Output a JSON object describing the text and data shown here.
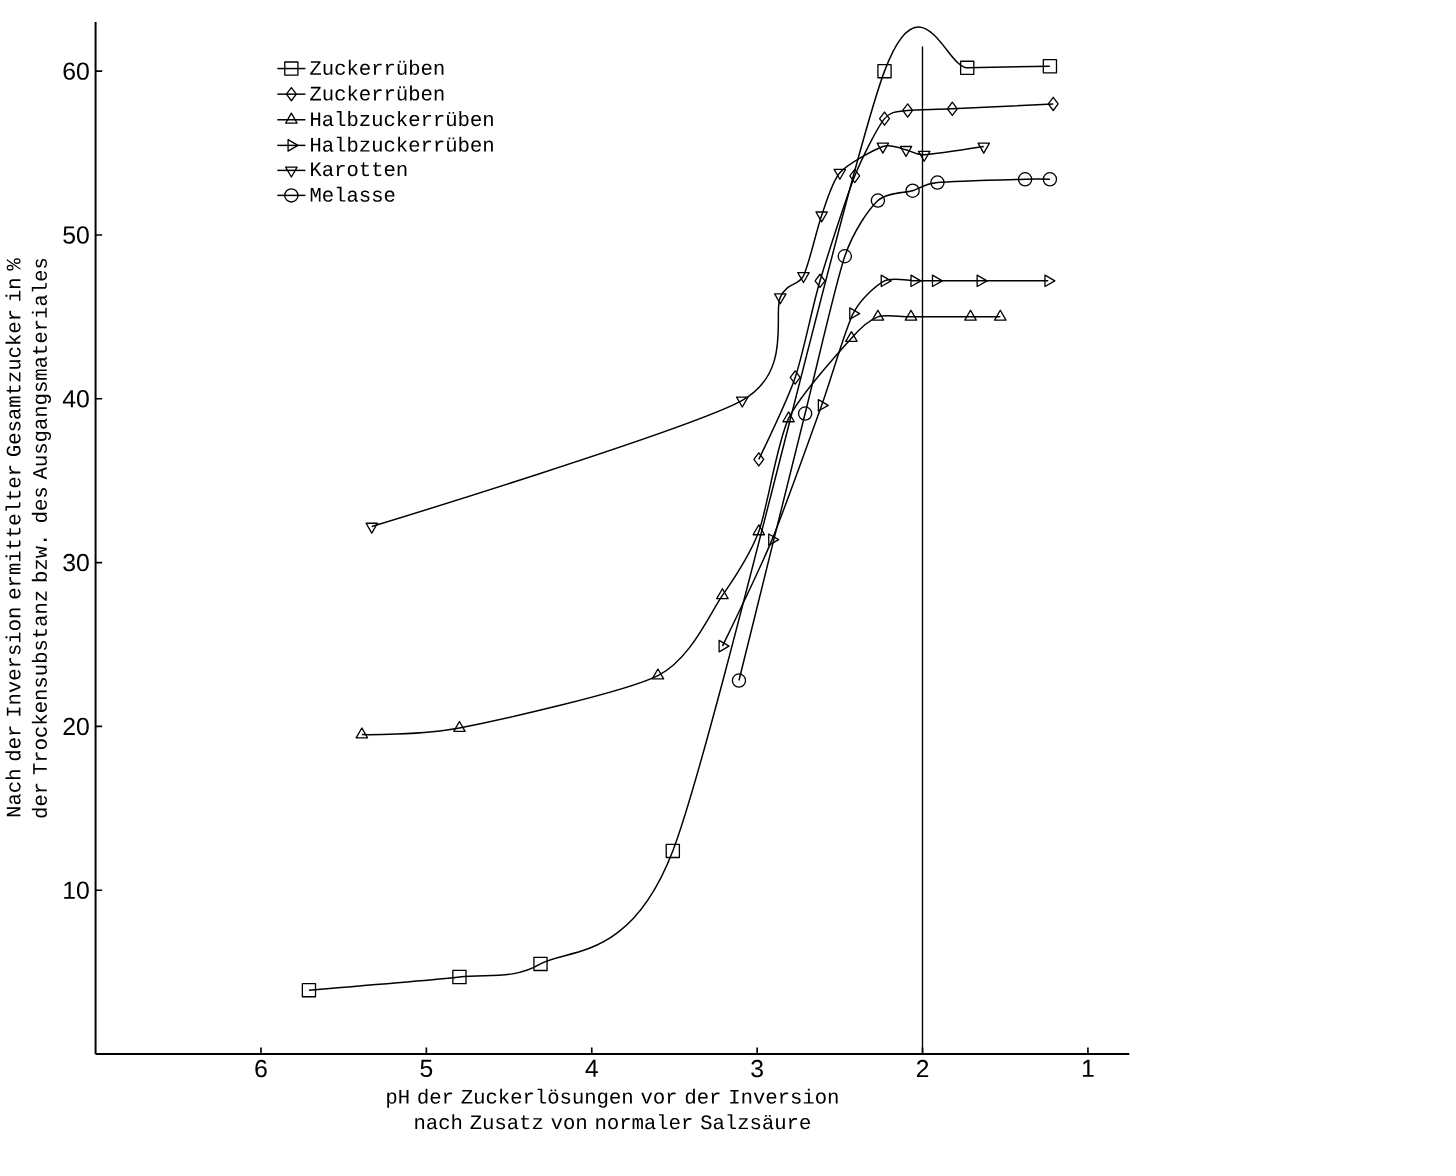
{
  "chart_data": {
    "type": "line",
    "xlabel": "pH der Zuckerlösungen vor der Inversion nach Zusatz von normaler Salzsäure",
    "ylabel": "Nach der Inversion ermittelter Gesamtzucker in % der Trockensubstanz bzw. des Ausgangsmateriales",
    "xlim": [
      7.0,
      0.75
    ],
    "ylim": [
      0,
      63
    ],
    "xticks": [
      6,
      5,
      4,
      3,
      2,
      1
    ],
    "yticks": [
      10,
      20,
      30,
      40,
      50,
      60
    ],
    "legend": "top left",
    "grid": false,
    "line_style": "solid",
    "ref_lines": [
      {
        "axis": "x",
        "value": 2,
        "color": "#000000"
      }
    ],
    "series": [
      {
        "name": "Zuckerrüben",
        "color": "#000000",
        "marker": "square",
        "x": [
          5.71,
          4.8,
          4.31,
          3.51,
          2.23,
          1.73,
          1.23
        ],
        "values": [
          3.9,
          4.7,
          5.5,
          12.4,
          60.0,
          60.2,
          60.3
        ]
      },
      {
        "name": "Zuckerrüben",
        "color": "#000000",
        "marker": "diamond",
        "x": [
          2.99,
          2.77,
          2.62,
          2.41,
          2.23,
          2.09,
          1.82,
          1.21
        ],
        "values": [
          36.3,
          41.3,
          47.2,
          53.6,
          57.1,
          57.6,
          57.7,
          58.0
        ]
      },
      {
        "name": "Halbzuckerrüben",
        "color": "#000000",
        "marker": "triangle",
        "x": [
          5.39,
          4.8,
          3.6,
          3.21,
          2.99,
          2.81,
          2.43,
          2.27,
          2.07,
          1.71,
          1.53
        ],
        "values": [
          19.5,
          19.9,
          23.1,
          28.0,
          31.9,
          38.8,
          43.7,
          45.0,
          45.0,
          45.0,
          45.0
        ]
      },
      {
        "name": "Halbzuckerrüben",
        "color": "#000000",
        "marker": "triangle-right",
        "x": [
          3.21,
          2.91,
          2.61,
          2.42,
          2.23,
          2.05,
          1.92,
          1.65,
          1.24
        ],
        "values": [
          24.9,
          31.4,
          39.6,
          45.2,
          47.2,
          47.2,
          47.2,
          47.2,
          47.2
        ]
      },
      {
        "name": "Karotten",
        "color": "#000000",
        "marker": "triangle-down",
        "x": [
          5.33,
          3.09,
          2.86,
          2.72,
          2.61,
          2.5,
          2.24,
          2.1,
          1.99,
          1.63
        ],
        "values": [
          32.2,
          39.9,
          46.2,
          47.5,
          51.2,
          53.8,
          55.4,
          55.2,
          54.9,
          55.4
        ]
      },
      {
        "name": "Melasse",
        "color": "#000000",
        "marker": "circle",
        "x": [
          3.11,
          2.71,
          2.47,
          2.27,
          2.06,
          1.91,
          1.38,
          1.23
        ],
        "values": [
          22.8,
          39.1,
          48.7,
          52.1,
          52.7,
          53.2,
          53.4,
          53.4
        ]
      }
    ]
  }
}
